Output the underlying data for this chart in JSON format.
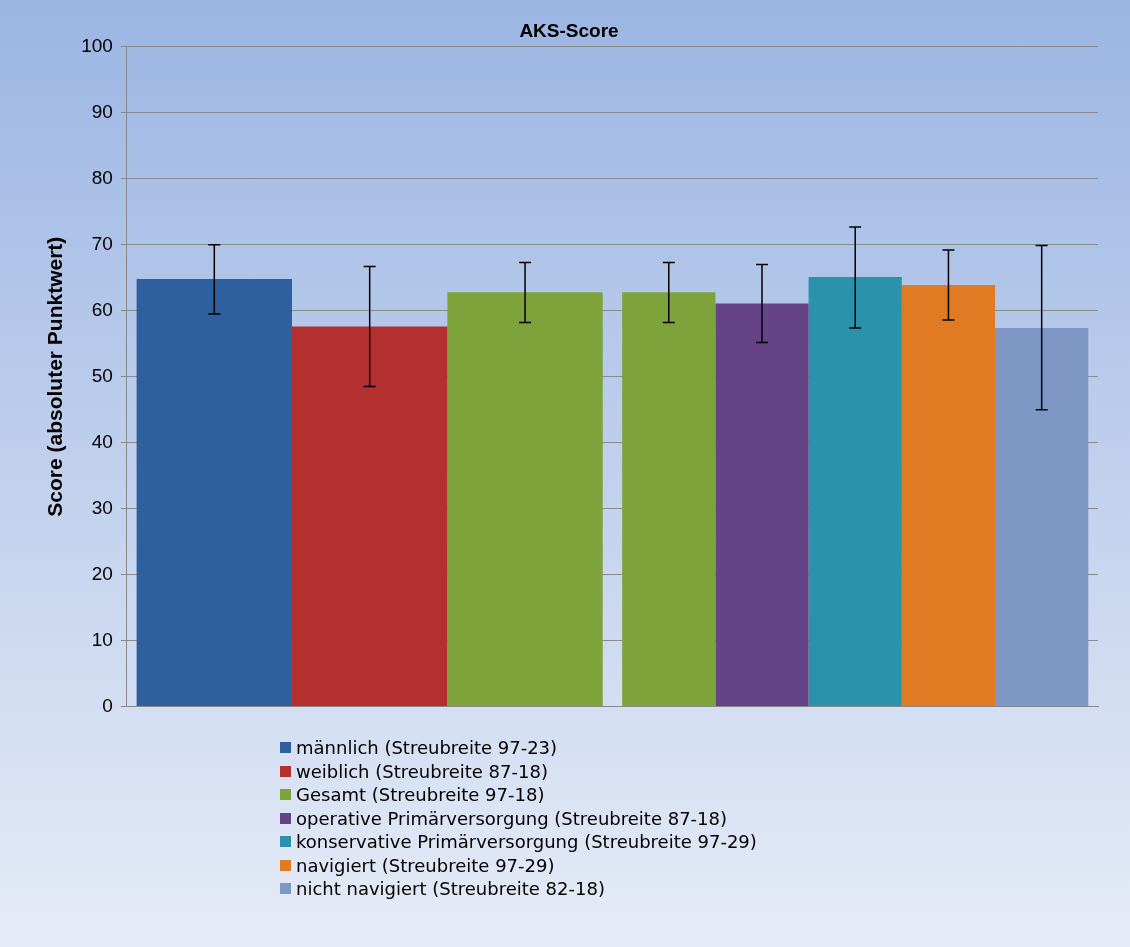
{
  "chart_data": {
    "type": "bar",
    "title": "AKS-Score",
    "ylabel": "Score (absoluter Punktwert)",
    "categories": [
      null,
      null
    ],
    "series": [
      {
        "name": "männlich (Streubreite 97-23)",
        "color": "#2e5f9e",
        "values": [
          64.8,
          null
        ],
        "errors": [
          [
            59.5,
            70
          ],
          null
        ]
      },
      {
        "name": "weiblich (Streubreite 87-18)",
        "color": "#b3302e",
        "values": [
          57.6,
          null
        ],
        "errors": [
          [
            48.5,
            66.7
          ],
          null
        ]
      },
      {
        "name": "Gesamt (Streubreite 97-18)",
        "color": "#7ea33a",
        "values": [
          62.8,
          62.8
        ],
        "errors": [
          [
            58.2,
            67.3
          ],
          [
            58.2,
            67.3
          ]
        ]
      },
      {
        "name": "operative Primärversorgung (Streubreite 87-18)",
        "color": "#664287",
        "values": [
          null,
          61.1
        ],
        "errors": [
          null,
          [
            55.2,
            67
          ]
        ]
      },
      {
        "name": "konservative Primärversorgung (Streubreite 97-29)",
        "color": "#2a93ab",
        "values": [
          null,
          65.1
        ],
        "errors": [
          null,
          [
            57.4,
            72.7
          ]
        ]
      },
      {
        "name": "navigiert (Streubreite 97-29)",
        "color": "#e07b24",
        "values": [
          null,
          63.9
        ],
        "errors": [
          null,
          [
            58.6,
            69.2
          ]
        ]
      },
      {
        "name": "nicht navigiert (Streubreite 82-18)",
        "color": "#7f97c4",
        "values": [
          null,
          57.4
        ],
        "errors": [
          null,
          [
            45,
            69.9
          ]
        ]
      }
    ],
    "ylim": [
      0,
      100
    ],
    "yticks": [
      0,
      10,
      20,
      30,
      40,
      50,
      60,
      70,
      80,
      90,
      100
    ],
    "grid": "y",
    "legend": "bottom"
  }
}
